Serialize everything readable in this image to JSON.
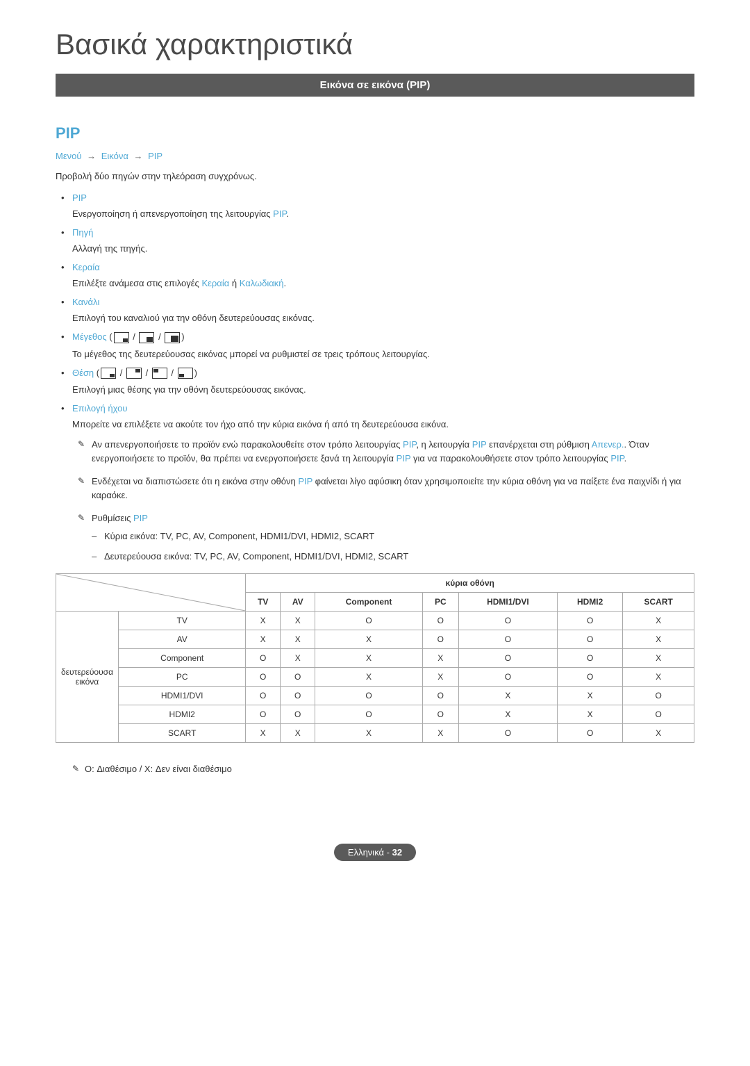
{
  "main_title": "Βασικά χαρακτηριστικά",
  "section_header": "Εικόνα σε εικόνα (PIP)",
  "pip_title": "PIP",
  "breadcrumb": {
    "item1": "Μενού",
    "item2": "Εικόνα",
    "item3": "PIP",
    "arrow": "→"
  },
  "intro": "Προβολή δύο πηγών στην τηλεόραση συγχρόνως.",
  "bullets": [
    {
      "label": "PIP",
      "desc_pre": "Ενεργοποίηση ή απενεργοποίηση της λειτουργίας ",
      "desc_link": "PIP",
      "desc_post": "."
    },
    {
      "label": "Πηγή",
      "desc": "Αλλαγή της πηγής."
    },
    {
      "label": "Κεραία",
      "desc_pre": "Επιλέξτε ανάμεσα στις επιλογές ",
      "desc_link1": "Κεραία",
      "desc_mid": " ή ",
      "desc_link2": "Καλωδιακή",
      "desc_post": "."
    },
    {
      "label": "Κανάλι",
      "desc": "Επιλογή του καναλιού για την οθόνη δευτερεύουσας εικόνας."
    },
    {
      "label": "Μέγεθος",
      "icons": "size",
      "desc": "Το μέγεθος της δευτερεύουσας εικόνας μπορεί να ρυθμιστεί σε τρεις τρόπους λειτουργίας."
    },
    {
      "label": "Θέση",
      "icons": "position",
      "desc": "Επιλογή μιας θέσης για την οθόνη δευτερεύουσας εικόνας."
    },
    {
      "label": "Επιλογή ήχου",
      "desc": "Μπορείτε να επιλέξετε να ακούτε τον ήχο από την κύρια εικόνα ή από τη δευτερεύουσα εικόνα."
    }
  ],
  "notes": [
    {
      "parts": [
        {
          "t": "text",
          "v": "Αν απενεργοποιήσετε το προϊόν ενώ παρακολουθείτε στον τρόπο λειτουργίας "
        },
        {
          "t": "link",
          "v": "PIP"
        },
        {
          "t": "text",
          "v": ", η λειτουργία "
        },
        {
          "t": "link",
          "v": "PIP"
        },
        {
          "t": "text",
          "v": " επανέρχεται στη ρύθμιση "
        },
        {
          "t": "link",
          "v": "Απενερ."
        },
        {
          "t": "text",
          "v": ". Όταν ενεργοποιήσετε το προϊόν, θα πρέπει να ενεργοποιήσετε ξανά τη λειτουργία "
        },
        {
          "t": "link",
          "v": "PIP"
        },
        {
          "t": "text",
          "v": " για να παρακολουθήσετε στον τρόπο λειτουργίας "
        },
        {
          "t": "link",
          "v": "PIP"
        },
        {
          "t": "text",
          "v": "."
        }
      ]
    },
    {
      "parts": [
        {
          "t": "text",
          "v": "Ενδέχεται να διαπιστώσετε ότι η εικόνα στην οθόνη "
        },
        {
          "t": "link",
          "v": "PIP"
        },
        {
          "t": "text",
          "v": " φαίνεται λίγο αφύσικη όταν χρησιμοποιείτε την κύρια οθόνη για να παίξετε ένα παιχνίδι ή για καραόκε."
        }
      ]
    },
    {
      "parts": [
        {
          "t": "text",
          "v": "Ρυθμίσεις "
        },
        {
          "t": "link",
          "v": "PIP"
        }
      ],
      "dash": [
        "Κύρια εικόνα: TV, PC, AV, Component, HDMI1/DVI, HDMI2, SCART",
        "Δευτερεύουσα εικόνα: TV, PC, AV, Component, HDMI1/DVI, HDMI2, SCART"
      ]
    }
  ],
  "table": {
    "main_screen_label": "κύρια οθόνη",
    "sub_screen_label": "δευτερεύουσα εικόνα",
    "columns": [
      "TV",
      "AV",
      "Component",
      "PC",
      "HDMI1/DVI",
      "HDMI2",
      "SCART"
    ],
    "rows": [
      {
        "label": "TV",
        "cells": [
          "X",
          "X",
          "O",
          "O",
          "O",
          "O",
          "X"
        ]
      },
      {
        "label": "AV",
        "cells": [
          "X",
          "X",
          "X",
          "O",
          "O",
          "O",
          "X"
        ]
      },
      {
        "label": "Component",
        "cells": [
          "O",
          "X",
          "X",
          "X",
          "O",
          "O",
          "X"
        ]
      },
      {
        "label": "PC",
        "cells": [
          "O",
          "O",
          "X",
          "X",
          "O",
          "O",
          "X"
        ]
      },
      {
        "label": "HDMI1/DVI",
        "cells": [
          "O",
          "O",
          "O",
          "O",
          "X",
          "X",
          "O"
        ]
      },
      {
        "label": "HDMI2",
        "cells": [
          "O",
          "O",
          "O",
          "O",
          "X",
          "X",
          "O"
        ]
      },
      {
        "label": "SCART",
        "cells": [
          "X",
          "X",
          "X",
          "X",
          "O",
          "O",
          "X"
        ]
      }
    ]
  },
  "footnote": "O: Διαθέσιμο / X: Δεν είναι διαθέσιμο",
  "footer": {
    "lang": "Ελληνικά",
    "sep": " - ",
    "page": "32"
  },
  "colors": {
    "link": "#4fa8d4",
    "header_bg": "#5a5a5a",
    "text": "#333333",
    "border": "#aaaaaa"
  }
}
